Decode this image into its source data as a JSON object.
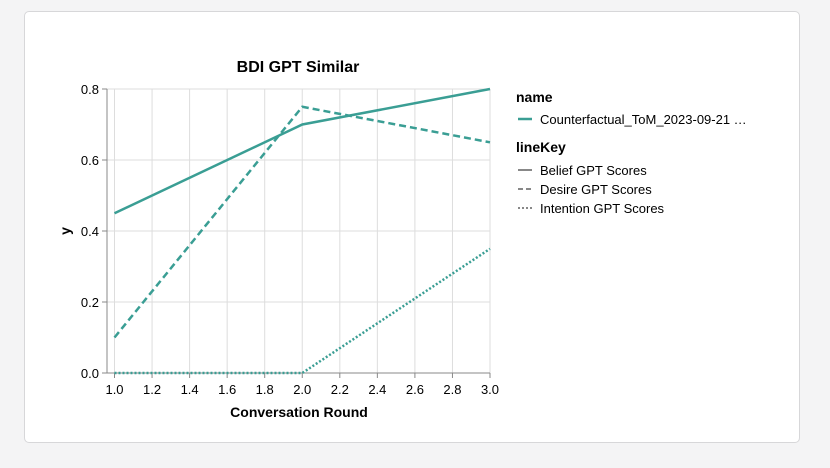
{
  "chart_data": {
    "type": "line",
    "title": "BDI GPT Similar",
    "xlabel": "Conversation Round",
    "ylabel": "y",
    "xlim": [
      0.96,
      3.0
    ],
    "ylim": [
      0,
      0.8
    ],
    "x_ticks": [
      "1.0",
      "1.2",
      "1.4",
      "1.6",
      "1.8",
      "2.0",
      "2.2",
      "2.4",
      "2.6",
      "2.8",
      "3.0"
    ],
    "y_ticks": [
      "0.0",
      "0.2",
      "0.4",
      "0.6",
      "0.8"
    ],
    "grid": true,
    "color": "#3a9e94",
    "legend": {
      "name_title": "name",
      "name_items": [
        "Counterfactual_ToM_2023-09-21 …"
      ],
      "linekey_title": "lineKey",
      "linekey_items": [
        "Belief GPT Scores",
        "Desire GPT Scores",
        "Intention GPT Scores"
      ]
    },
    "series": [
      {
        "name": "Belief GPT Scores",
        "style": "solid",
        "x": [
          1,
          2,
          3
        ],
        "y": [
          0.45,
          0.7,
          0.8
        ]
      },
      {
        "name": "Desire GPT Scores",
        "style": "dashed",
        "x": [
          1,
          2,
          3
        ],
        "y": [
          0.1,
          0.75,
          0.65
        ]
      },
      {
        "name": "Intention GPT Scores",
        "style": "dotted",
        "x": [
          1,
          2,
          3
        ],
        "y": [
          0.0,
          0.0,
          0.35
        ]
      }
    ]
  }
}
